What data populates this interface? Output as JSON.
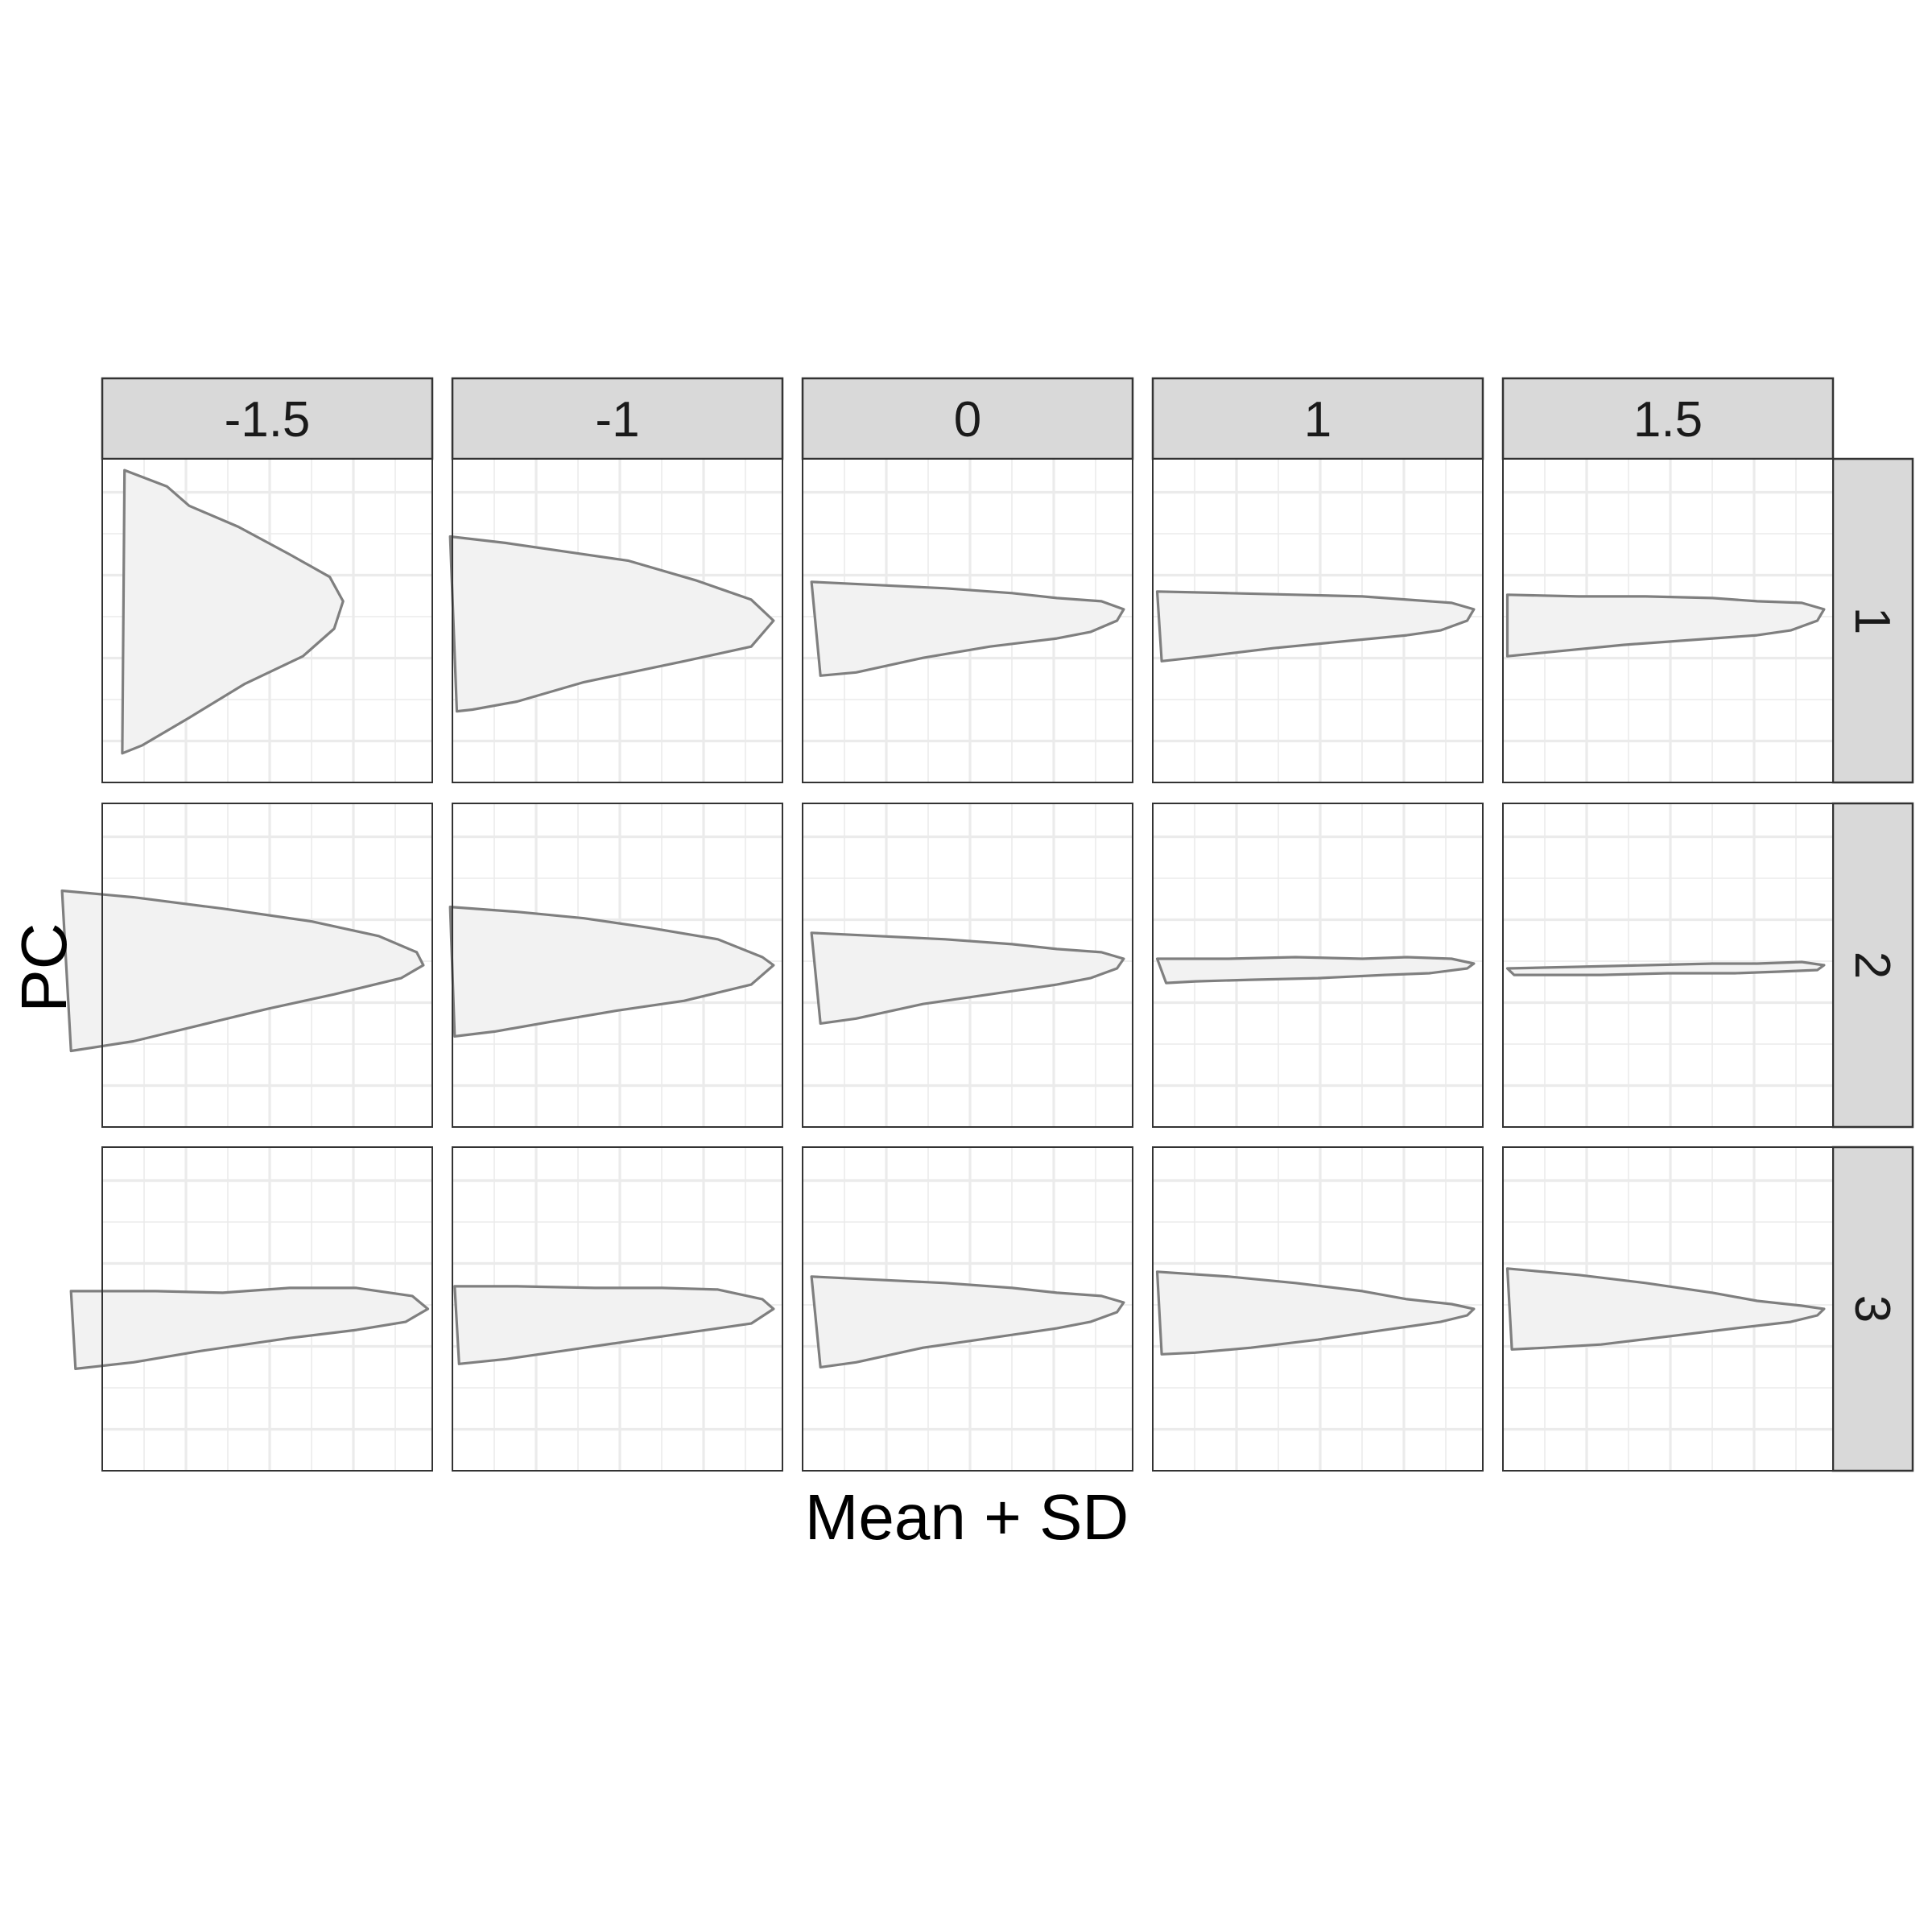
{
  "chart_data": {
    "type": "faceted shape outlines",
    "xlabel": "Mean + SD",
    "ylabel": "PC",
    "column_facets": [
      "-1.5",
      "-1",
      "0",
      "1",
      "1.5"
    ],
    "row_facets": [
      "1",
      "2",
      "3"
    ],
    "grid": true,
    "colors": {
      "shape_fill": "#f2f2f2",
      "shape_outline": "#7f7f7f",
      "strip": "#d9d9d9"
    },
    "panels": [
      {
        "pc": "1",
        "sd": "-1.5",
        "outline": [
          [
            -0.64,
            0.93
          ],
          [
            -0.45,
            0.83
          ],
          [
            -0.35,
            0.71
          ],
          [
            -0.13,
            0.58
          ],
          [
            0.1,
            0.41
          ],
          [
            0.28,
            0.27
          ],
          [
            0.34,
            0.12
          ],
          [
            0.3,
            -0.05
          ],
          [
            0.16,
            -0.22
          ],
          [
            -0.1,
            -0.39
          ],
          [
            -0.35,
            -0.6
          ],
          [
            -0.56,
            -0.77
          ],
          [
            -0.65,
            -0.82
          ]
        ]
      },
      {
        "pc": "1",
        "sd": "-1",
        "outline": [
          [
            -0.75,
            0.52
          ],
          [
            -0.5,
            0.48
          ],
          [
            -0.2,
            0.42
          ],
          [
            0.05,
            0.37
          ],
          [
            0.35,
            0.25
          ],
          [
            0.6,
            0.13
          ],
          [
            0.7,
            0
          ],
          [
            0.6,
            -0.16
          ],
          [
            0.3,
            -0.25
          ],
          [
            -0.15,
            -0.38
          ],
          [
            -0.45,
            -0.5
          ],
          [
            -0.65,
            -0.55
          ],
          [
            -0.72,
            -0.56
          ]
        ]
      },
      {
        "pc": "1",
        "sd": "0",
        "outline": [
          [
            -0.7,
            0.24
          ],
          [
            -0.4,
            0.22
          ],
          [
            -0.1,
            0.2
          ],
          [
            0.2,
            0.17
          ],
          [
            0.4,
            0.14
          ],
          [
            0.6,
            0.12
          ],
          [
            0.7,
            0.07
          ],
          [
            0.67,
            0
          ],
          [
            0.55,
            -0.07
          ],
          [
            0.4,
            -0.11
          ],
          [
            0.1,
            -0.16
          ],
          [
            -0.2,
            -0.23
          ],
          [
            -0.5,
            -0.32
          ],
          [
            -0.66,
            -0.34
          ]
        ]
      },
      {
        "pc": "1",
        "sd": "1",
        "outline": [
          [
            -0.72,
            0.18
          ],
          [
            -0.4,
            0.17
          ],
          [
            -0.1,
            0.16
          ],
          [
            0.2,
            0.15
          ],
          [
            0.4,
            0.13
          ],
          [
            0.6,
            0.11
          ],
          [
            0.7,
            0.07
          ],
          [
            0.67,
            0
          ],
          [
            0.55,
            -0.06
          ],
          [
            0.4,
            -0.09
          ],
          [
            0.1,
            -0.13
          ],
          [
            -0.2,
            -0.17
          ],
          [
            -0.5,
            -0.22
          ],
          [
            -0.7,
            -0.25
          ]
        ]
      },
      {
        "pc": "1",
        "sd": "1.5",
        "outline": [
          [
            -0.72,
            0.16
          ],
          [
            -0.4,
            0.15
          ],
          [
            -0.1,
            0.15
          ],
          [
            0.2,
            0.14
          ],
          [
            0.4,
            0.12
          ],
          [
            0.6,
            0.11
          ],
          [
            0.7,
            0.07
          ],
          [
            0.67,
            0
          ],
          [
            0.55,
            -0.06
          ],
          [
            0.4,
            -0.09
          ],
          [
            0.1,
            -0.12
          ],
          [
            -0.2,
            -0.15
          ],
          [
            -0.5,
            -0.19
          ],
          [
            -0.72,
            -0.22
          ]
        ]
      },
      {
        "pc": "2",
        "sd": "-1.5",
        "outline": [
          [
            -0.92,
            0.46
          ],
          [
            -0.6,
            0.42
          ],
          [
            -0.2,
            0.35
          ],
          [
            0.2,
            0.27
          ],
          [
            0.5,
            0.18
          ],
          [
            0.67,
            0.08
          ],
          [
            0.7,
            0
          ],
          [
            0.6,
            -0.08
          ],
          [
            0.3,
            -0.18
          ],
          [
            0,
            -0.27
          ],
          [
            -0.3,
            -0.37
          ],
          [
            -0.6,
            -0.47
          ],
          [
            -0.88,
            -0.53
          ]
        ]
      },
      {
        "pc": "2",
        "sd": "-1",
        "outline": [
          [
            -0.75,
            0.36
          ],
          [
            -0.45,
            0.33
          ],
          [
            -0.15,
            0.29
          ],
          [
            0.15,
            0.23
          ],
          [
            0.45,
            0.16
          ],
          [
            0.65,
            0.05
          ],
          [
            0.7,
            0
          ],
          [
            0.6,
            -0.12
          ],
          [
            0.3,
            -0.22
          ],
          [
            0,
            -0.28
          ],
          [
            -0.3,
            -0.35
          ],
          [
            -0.55,
            -0.41
          ],
          [
            -0.73,
            -0.44
          ]
        ]
      },
      {
        "pc": "2",
        "sd": "0",
        "outline": [
          [
            -0.7,
            0.2
          ],
          [
            -0.4,
            0.18
          ],
          [
            -0.1,
            0.16
          ],
          [
            0.2,
            0.13
          ],
          [
            0.4,
            0.1
          ],
          [
            0.6,
            0.08
          ],
          [
            0.7,
            0.04
          ],
          [
            0.67,
            -0.02
          ],
          [
            0.55,
            -0.08
          ],
          [
            0.4,
            -0.12
          ],
          [
            0.1,
            -0.18
          ],
          [
            -0.2,
            -0.24
          ],
          [
            -0.5,
            -0.33
          ],
          [
            -0.66,
            -0.36
          ]
        ]
      },
      {
        "pc": "2",
        "sd": "1",
        "outline": [
          [
            -0.72,
            0.04
          ],
          [
            -0.4,
            0.04
          ],
          [
            -0.1,
            0.05
          ],
          [
            0.2,
            0.04
          ],
          [
            0.4,
            0.05
          ],
          [
            0.6,
            0.04
          ],
          [
            0.7,
            0.01
          ],
          [
            0.67,
            -0.02
          ],
          [
            0.5,
            -0.05
          ],
          [
            0.3,
            -0.06
          ],
          [
            0,
            -0.08
          ],
          [
            -0.3,
            -0.09
          ],
          [
            -0.55,
            -0.1
          ],
          [
            -0.68,
            -0.11
          ]
        ]
      },
      {
        "pc": "2",
        "sd": "1.5",
        "outline": [
          [
            -0.72,
            -0.02
          ],
          [
            -0.4,
            -0.01
          ],
          [
            -0.1,
            0
          ],
          [
            0.2,
            0.01
          ],
          [
            0.4,
            0.01
          ],
          [
            0.6,
            0.02
          ],
          [
            0.7,
            0
          ],
          [
            0.67,
            -0.03
          ],
          [
            0.5,
            -0.04
          ],
          [
            0.3,
            -0.05
          ],
          [
            0,
            -0.05
          ],
          [
            -0.3,
            -0.06
          ],
          [
            -0.55,
            -0.06
          ],
          [
            -0.69,
            -0.06
          ]
        ]
      },
      {
        "pc": "3",
        "sd": "-1.5",
        "outline": [
          [
            -0.88,
            0.11
          ],
          [
            -0.5,
            0.11
          ],
          [
            -0.2,
            0.1
          ],
          [
            0.1,
            0.13
          ],
          [
            0.4,
            0.13
          ],
          [
            0.65,
            0.08
          ],
          [
            0.72,
            0
          ],
          [
            0.62,
            -0.08
          ],
          [
            0.4,
            -0.13
          ],
          [
            0.1,
            -0.18
          ],
          [
            -0.3,
            -0.26
          ],
          [
            -0.6,
            -0.33
          ],
          [
            -0.86,
            -0.37
          ]
        ]
      },
      {
        "pc": "3",
        "sd": "-1",
        "outline": [
          [
            -0.73,
            0.14
          ],
          [
            -0.45,
            0.14
          ],
          [
            -0.1,
            0.13
          ],
          [
            0.2,
            0.13
          ],
          [
            0.45,
            0.12
          ],
          [
            0.65,
            0.06
          ],
          [
            0.7,
            0
          ],
          [
            0.6,
            -0.09
          ],
          [
            0.35,
            -0.14
          ],
          [
            0.05,
            -0.2
          ],
          [
            -0.25,
            -0.26
          ],
          [
            -0.5,
            -0.31
          ],
          [
            -0.71,
            -0.34
          ]
        ]
      },
      {
        "pc": "3",
        "sd": "0",
        "outline": [
          [
            -0.7,
            0.2
          ],
          [
            -0.4,
            0.18
          ],
          [
            -0.1,
            0.16
          ],
          [
            0.2,
            0.13
          ],
          [
            0.4,
            0.1
          ],
          [
            0.6,
            0.08
          ],
          [
            0.7,
            0.04
          ],
          [
            0.67,
            -0.02
          ],
          [
            0.55,
            -0.08
          ],
          [
            0.4,
            -0.12
          ],
          [
            0.1,
            -0.18
          ],
          [
            -0.2,
            -0.24
          ],
          [
            -0.5,
            -0.33
          ],
          [
            -0.66,
            -0.36
          ]
        ]
      },
      {
        "pc": "3",
        "sd": "1",
        "outline": [
          [
            -0.72,
            0.23
          ],
          [
            -0.4,
            0.2
          ],
          [
            -0.1,
            0.16
          ],
          [
            0.2,
            0.11
          ],
          [
            0.4,
            0.06
          ],
          [
            0.6,
            0.03
          ],
          [
            0.7,
            0
          ],
          [
            0.67,
            -0.04
          ],
          [
            0.55,
            -0.08
          ],
          [
            0.3,
            -0.13
          ],
          [
            0,
            -0.19
          ],
          [
            -0.3,
            -0.24
          ],
          [
            -0.55,
            -0.27
          ],
          [
            -0.7,
            -0.28
          ]
        ]
      },
      {
        "pc": "3",
        "sd": "1.5",
        "outline": [
          [
            -0.72,
            0.25
          ],
          [
            -0.4,
            0.21
          ],
          [
            -0.1,
            0.16
          ],
          [
            0.2,
            0.1
          ],
          [
            0.4,
            0.05
          ],
          [
            0.6,
            0.02
          ],
          [
            0.7,
            0
          ],
          [
            0.67,
            -0.04
          ],
          [
            0.55,
            -0.08
          ],
          [
            0.3,
            -0.12
          ],
          [
            0,
            -0.17
          ],
          [
            -0.3,
            -0.22
          ],
          [
            -0.55,
            -0.24
          ],
          [
            -0.7,
            -0.25
          ]
        ]
      }
    ]
  }
}
